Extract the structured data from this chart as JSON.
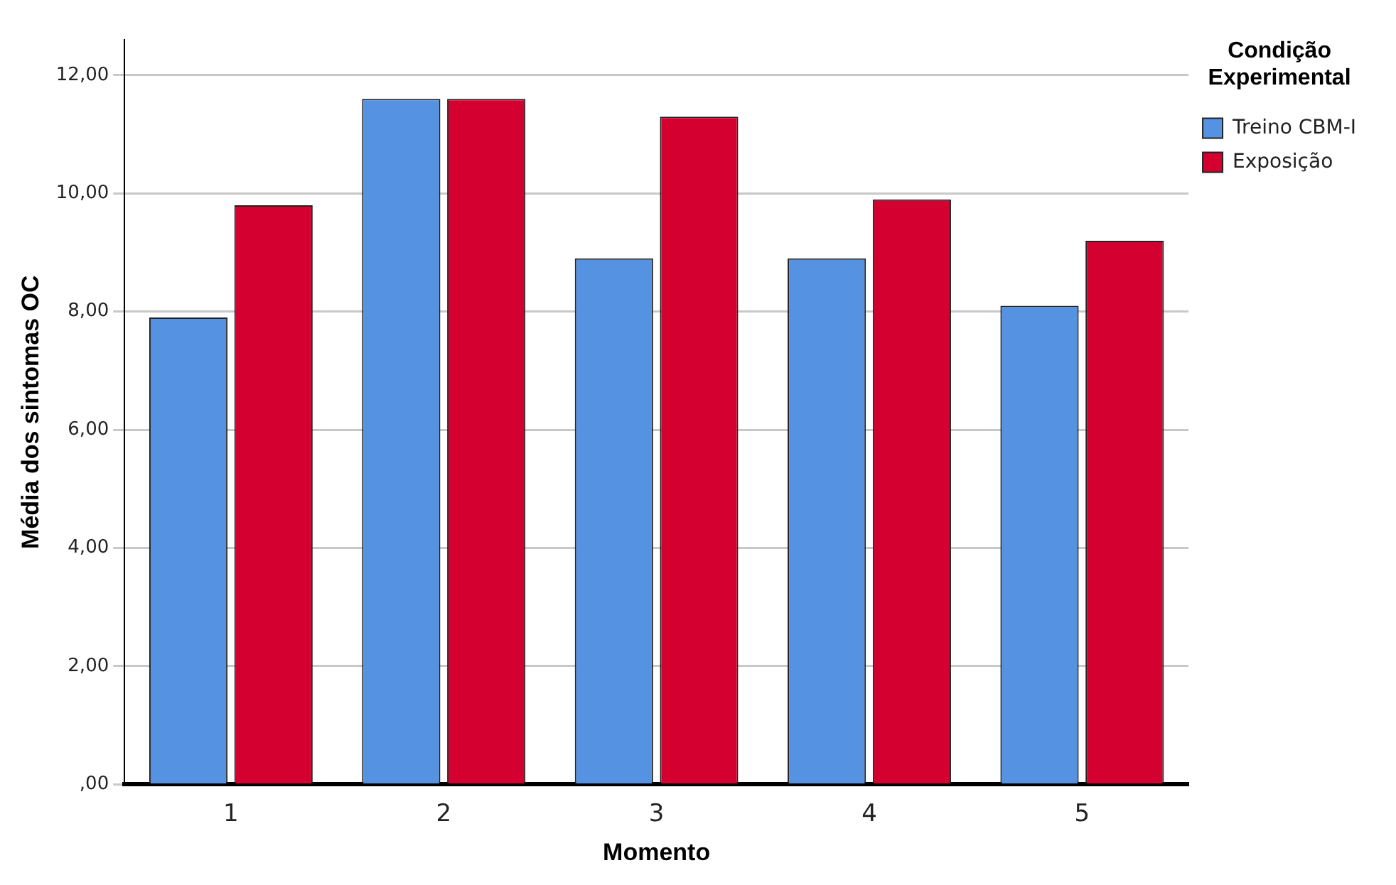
{
  "chart_data": {
    "type": "bar",
    "xlabel": "Momento",
    "ylabel": "Média dos sintomas OC",
    "legend_title": "Condição Experimental",
    "categories": [
      "1",
      "2",
      "3",
      "4",
      "5"
    ],
    "series": [
      {
        "name": "Treino CBM-I",
        "color": "#5592e2",
        "values": [
          7.9,
          11.6,
          8.9,
          8.9,
          8.1
        ]
      },
      {
        "name": "Exposição",
        "color": "#d4002f",
        "values": [
          9.8,
          11.6,
          11.3,
          9.9,
          9.2
        ]
      }
    ],
    "ylim": [
      0,
      12.6
    ],
    "yticks": [
      {
        "value": 0,
        "label": ",00"
      },
      {
        "value": 2,
        "label": "2,00"
      },
      {
        "value": 4,
        "label": "4,00"
      },
      {
        "value": 6,
        "label": "6,00"
      },
      {
        "value": 8,
        "label": "8,00"
      },
      {
        "value": 10,
        "label": "10,00"
      },
      {
        "value": 12,
        "label": "12,00"
      }
    ],
    "grid": "y",
    "legend": "top right"
  }
}
